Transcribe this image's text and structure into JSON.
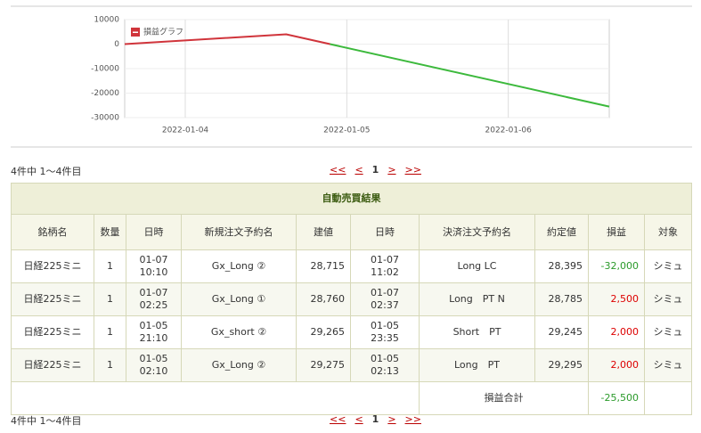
{
  "chart_data": {
    "type": "line",
    "legend": "損益グラフ",
    "x": [
      1641222000000,
      1641308400000,
      1641481200000
    ],
    "series": [
      {
        "name": "損益グラフ",
        "color_positive": "#d0343b",
        "color_negative": "#3cb93c",
        "values": [
          0,
          4000,
          -25500
        ]
      }
    ],
    "xlim": [
      1641222000000,
      1641481200000
    ],
    "xticks": [
      {
        "value": 1641254400000,
        "label": "2022-01-04"
      },
      {
        "value": 1641340800000,
        "label": "2022-01-05"
      },
      {
        "value": 1641427200000,
        "label": "2022-01-06"
      }
    ],
    "ylim": [
      -30000,
      10000
    ],
    "yticks": [
      10000,
      0,
      -10000,
      -20000,
      -30000
    ],
    "grid": true
  },
  "pagination": {
    "summary": "4件中 1～4件目",
    "first": "<<",
    "prev": "<",
    "current": "1",
    "next": ">",
    "last": ">>"
  },
  "table": {
    "title": "自動売買結果",
    "headers": [
      "銘柄名",
      "数量",
      "日時",
      "新規注文予約名",
      "建値",
      "日時",
      "決済注文予約名",
      "約定値",
      "損益",
      "対象"
    ],
    "rows": [
      [
        "日経225ミニ",
        "1",
        "01-07\n10:10",
        "Gx_Long ②",
        "28,715",
        "01-07\n11:02",
        "Long LC",
        "28,395",
        "-32,000",
        "シミュ"
      ],
      [
        "日経225ミニ",
        "1",
        "01-07\n02:25",
        "Gx_Long ①",
        "28,760",
        "01-07\n02:37",
        "Long　PT N",
        "28,785",
        "2,500",
        "シミュ"
      ],
      [
        "日経225ミニ",
        "1",
        "01-05\n21:10",
        "Gx_short ②",
        "29,265",
        "01-05\n23:35",
        "Short　PT",
        "29,245",
        "2,000",
        "シミュ"
      ],
      [
        "日経225ミニ",
        "1",
        "01-05\n02:10",
        "Gx_Long ②",
        "29,275",
        "01-05\n02:13",
        "Long　PT",
        "29,295",
        "2,000",
        "シミュ"
      ]
    ],
    "total_label": "損益合計",
    "total_value": "-25,500"
  }
}
